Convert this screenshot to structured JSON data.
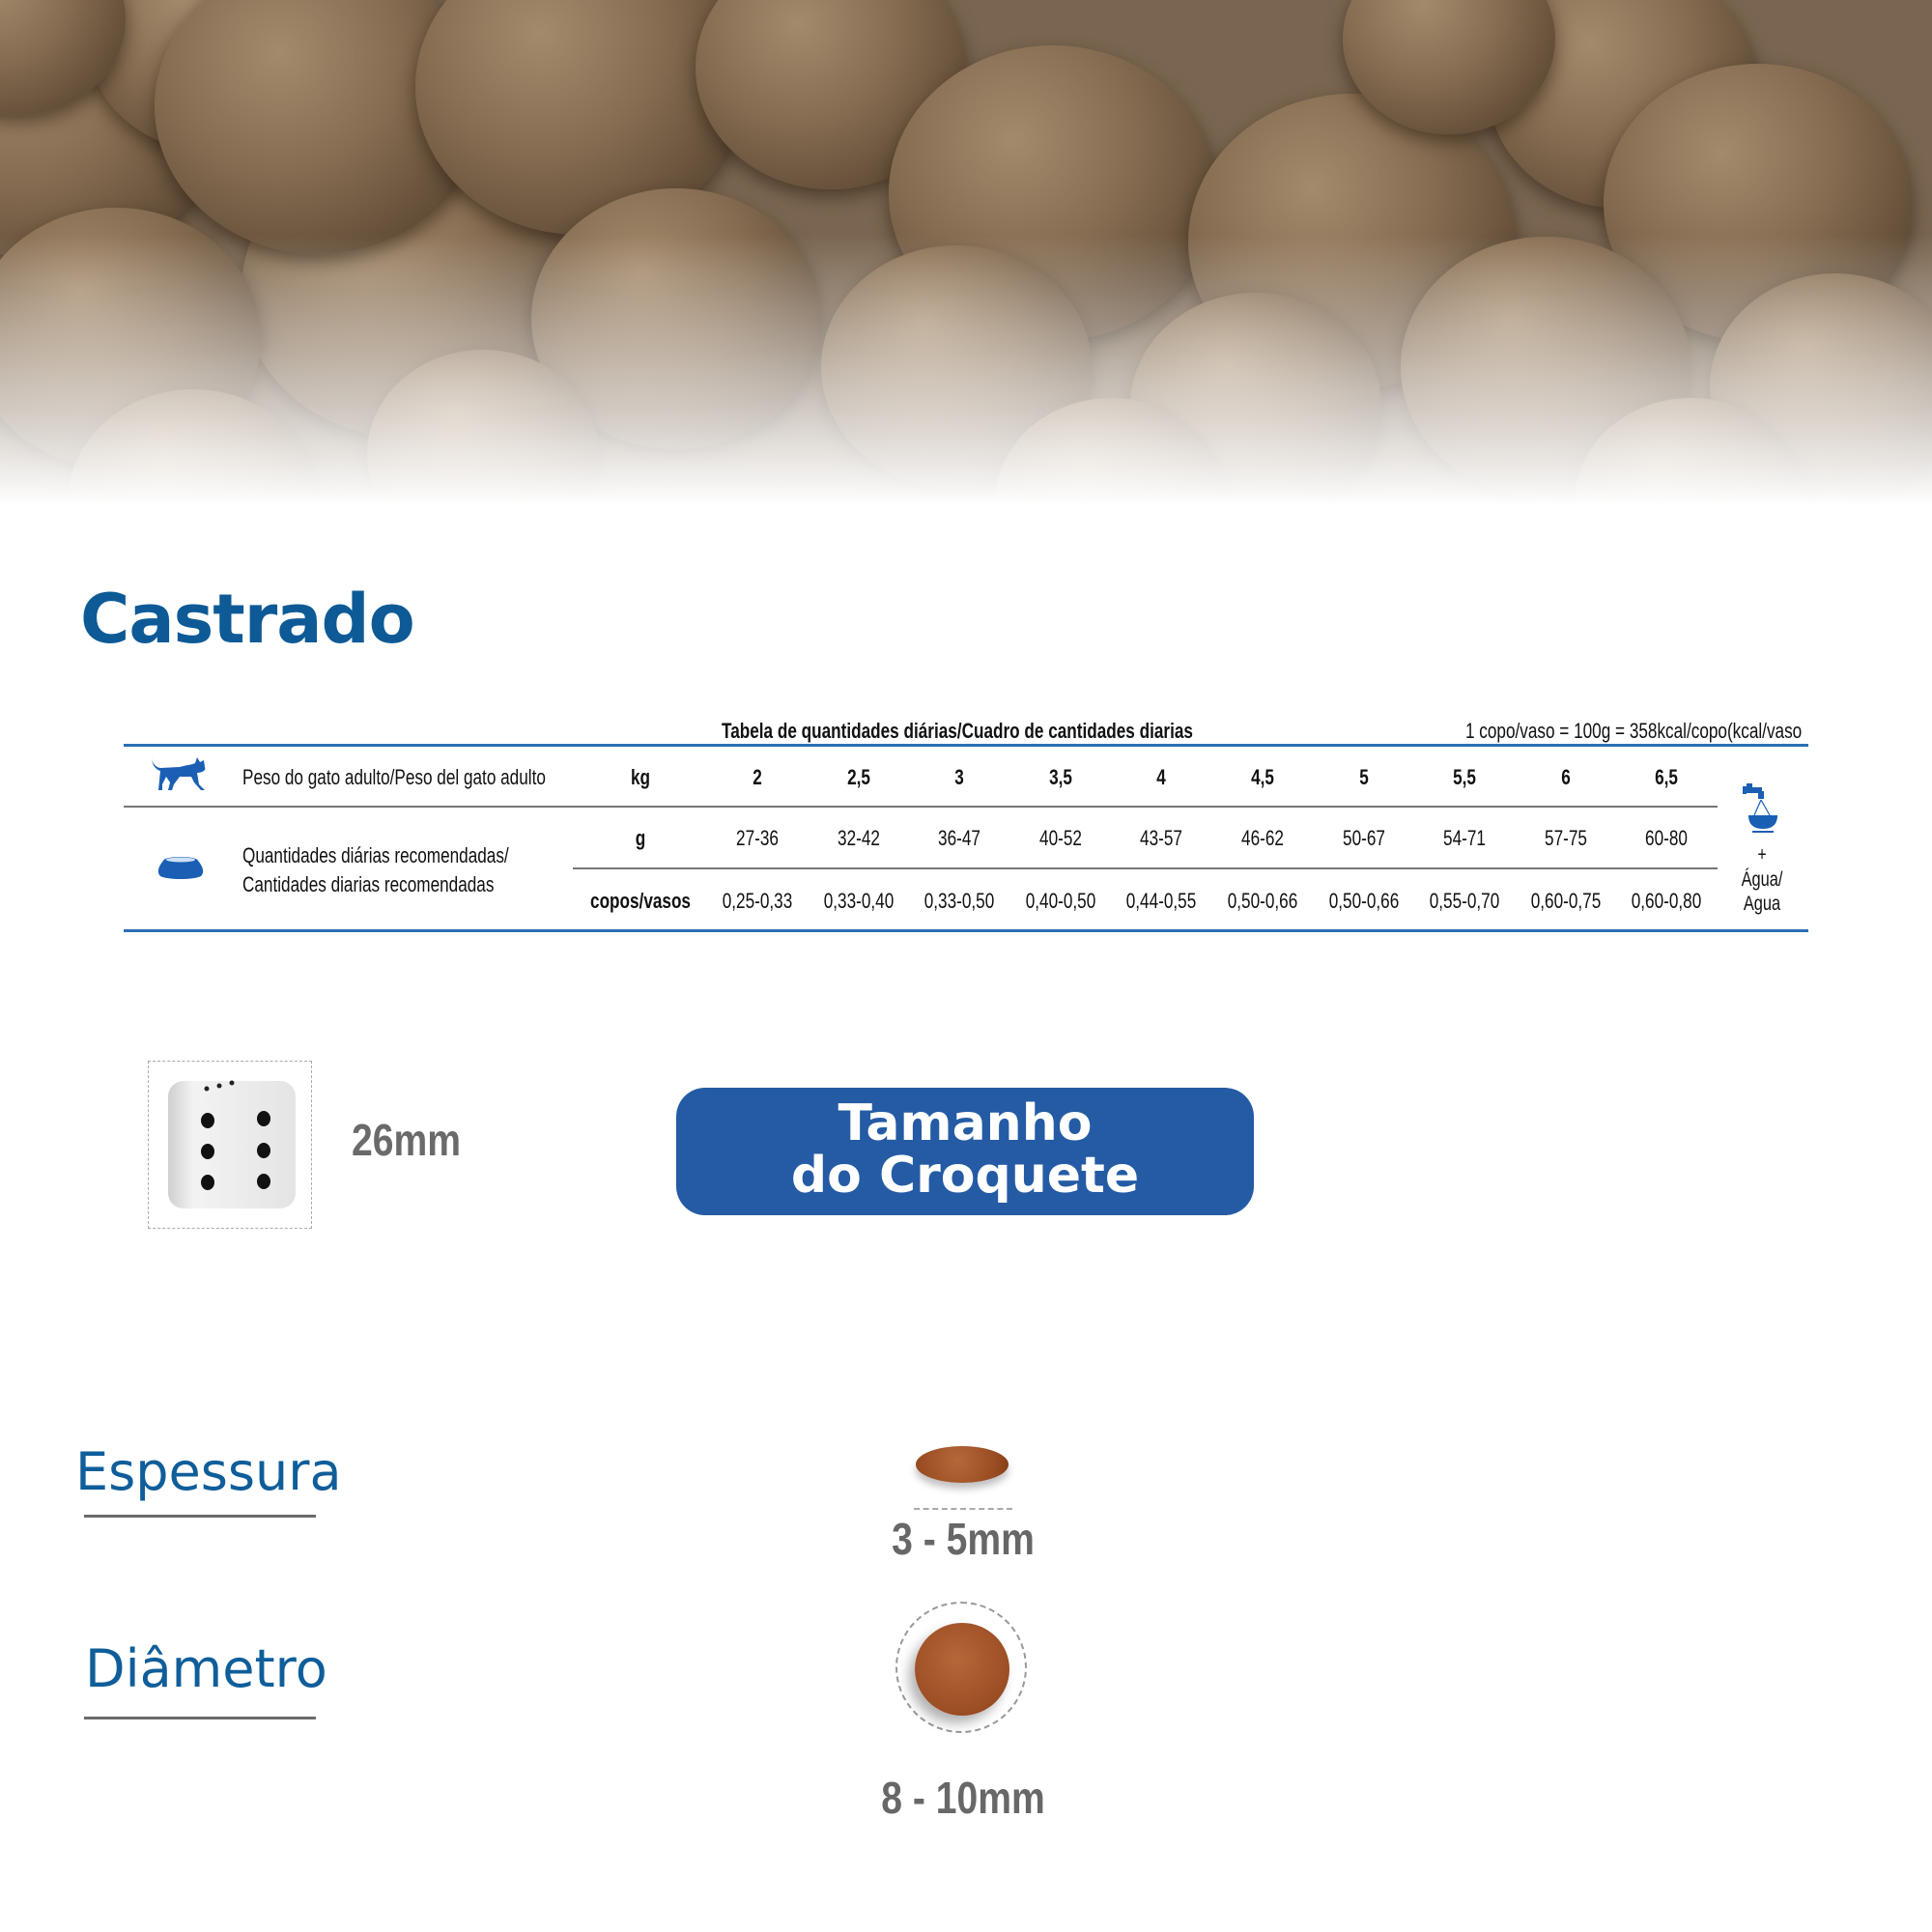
{
  "title": "Castrado",
  "table": {
    "caption": "Tabela de quantidades diárias/Cuadro de cantidades diarias",
    "note": "1 copo/vaso = 100g = 358kcal/copo(kcal/vaso",
    "weight_label": "Peso do gato adulto/Peso del gato adulto",
    "amount_label_1": "Quantidades diárias recomendadas/",
    "amount_label_2": "Cantidades diarias recomendadas",
    "unit_kg": "kg",
    "unit_g": "g",
    "unit_cups": "copos/vasos",
    "weights": [
      "2",
      "2,5",
      "3",
      "3,5",
      "4",
      "4,5",
      "5",
      "5,5",
      "6",
      "6,5"
    ],
    "grams": [
      "27-36",
      "32-42",
      "36-47",
      "40-52",
      "43-57",
      "46-62",
      "50-67",
      "54-71",
      "57-75",
      "60-80"
    ],
    "cups": [
      "0,25-0,33",
      "0,33-0,40",
      "0,33-0,50",
      "0,40-0,50",
      "0,44-0,55",
      "0,50-0,66",
      "0,50-0,66",
      "0,55-0,70",
      "0,60-0,75",
      "0,60-0,80"
    ],
    "water_plus": "+",
    "water_1": "Água/",
    "water_2": "Agua",
    "icons": {
      "weight": "cat-icon",
      "amount": "food-bowl-icon",
      "water": "water-tap-bowl-icon"
    }
  },
  "size": {
    "dice_label": "26mm",
    "badge_line1": "Tamanho",
    "badge_line2": "do Croquete",
    "thickness_label": "Espessura",
    "thickness_value": "3 - 5mm",
    "diameter_label": "Diâmetro",
    "diameter_value": "8 - 10mm"
  },
  "colors": {
    "brand_blue": "#0d5a96",
    "badge_blue": "#245ba4",
    "kibble": "#a0542a"
  }
}
